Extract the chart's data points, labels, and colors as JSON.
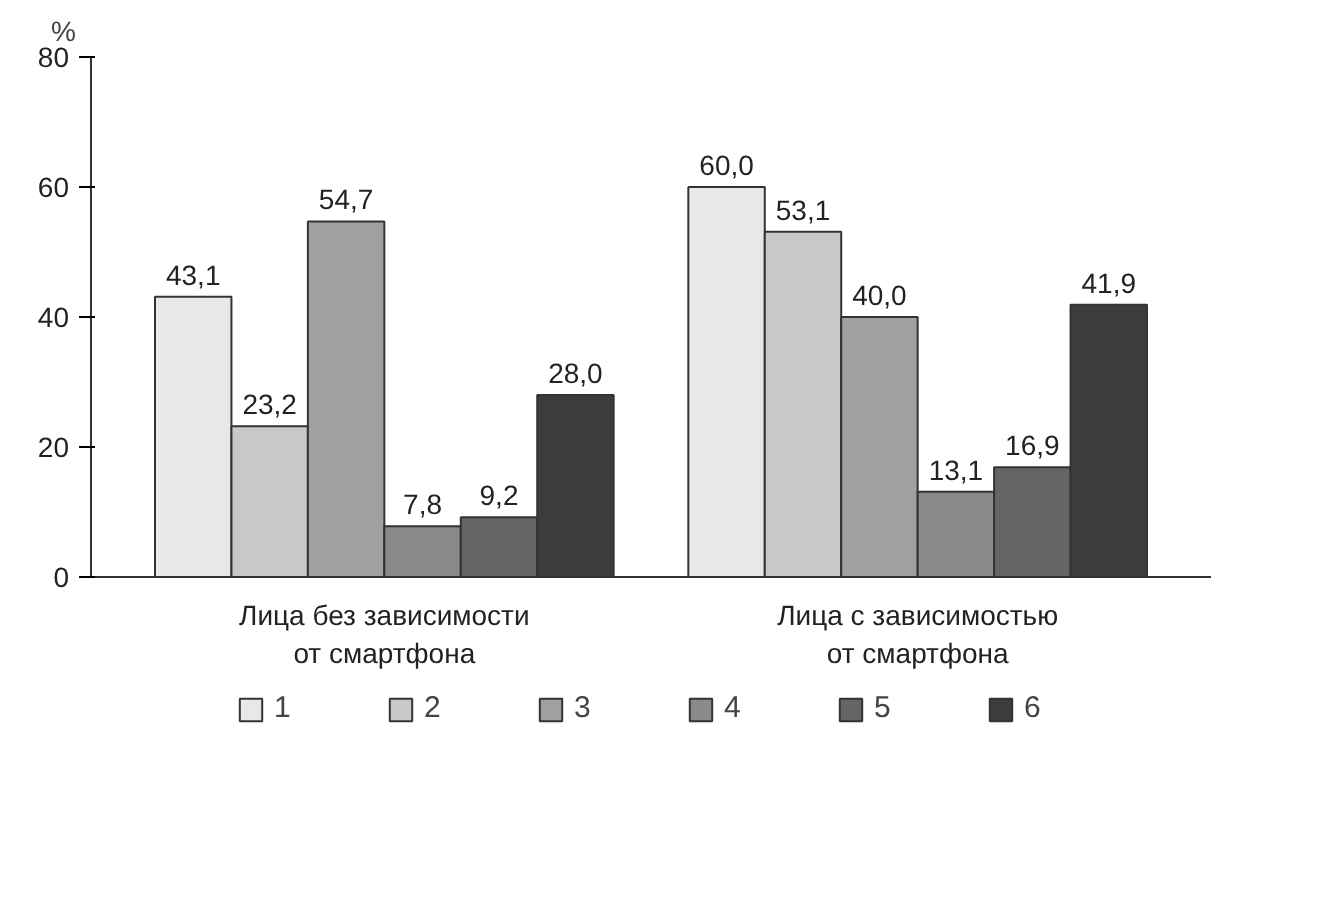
{
  "chart_data": {
    "type": "bar",
    "ylabel": "%",
    "categories": [
      "Лица без зависимости\nот смартфона",
      "Лица с зависимостью\nот смартфона"
    ],
    "series": [
      {
        "name": "1",
        "color": "#e8e8e8",
        "values": [
          43.1,
          60.0
        ],
        "value_labels": [
          "43,1",
          "60,0"
        ]
      },
      {
        "name": "2",
        "color": "#c8c8ca",
        "values": [
          23.2,
          53.1
        ],
        "value_labels": [
          "23,2",
          "53,1"
        ]
      },
      {
        "name": "3",
        "color": "#a0a0a2",
        "values": [
          54.7,
          40.0
        ],
        "value_labels": [
          "54,7",
          "40,0"
        ]
      },
      {
        "name": "4",
        "color": "#8a8a8c",
        "values": [
          7.8,
          13.1
        ],
        "value_labels": [
          "7,8",
          "13,1"
        ]
      },
      {
        "name": "5",
        "color": "#656567",
        "values": [
          9.2,
          16.9
        ],
        "value_labels": [
          "9,2",
          "16,9"
        ]
      },
      {
        "name": "6",
        "color": "#3c3c3e",
        "values": [
          28.0,
          41.9
        ],
        "value_labels": [
          "28,0",
          "41,9"
        ]
      }
    ],
    "ylim": [
      0,
      80
    ],
    "yticks": [
      0,
      20,
      40,
      60,
      80
    ],
    "legend": "bottom"
  }
}
